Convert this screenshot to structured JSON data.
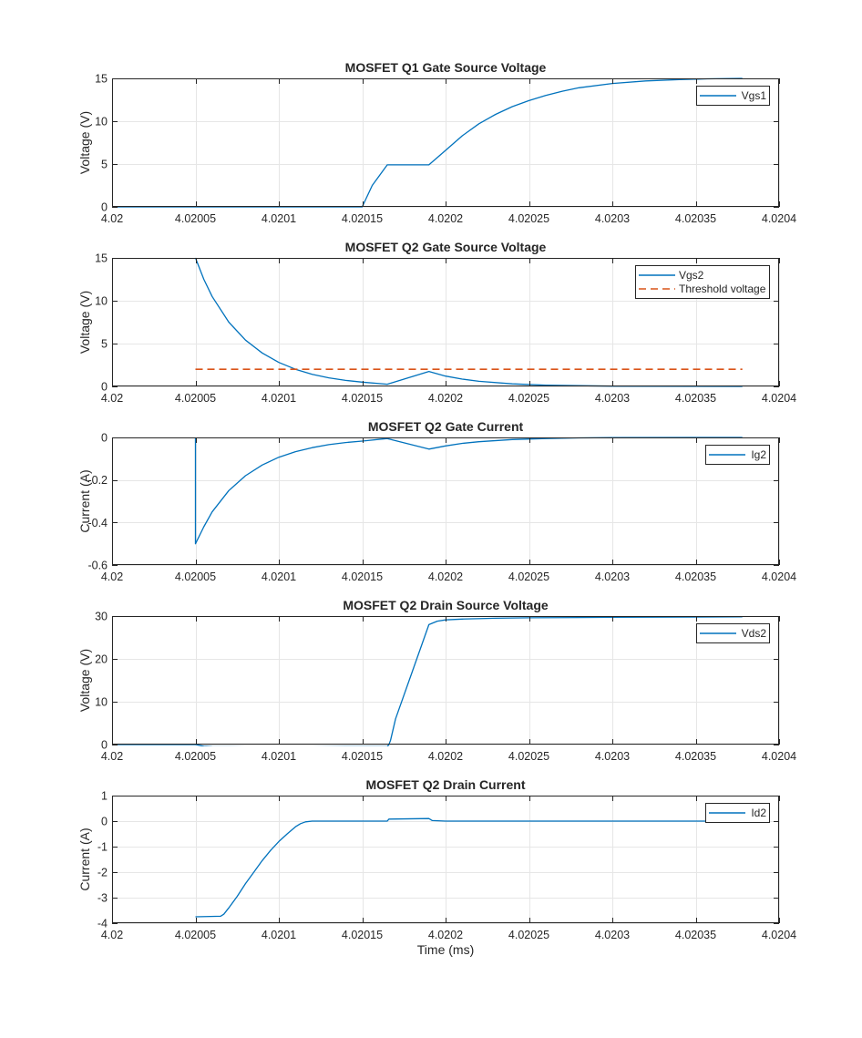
{
  "chart_data": [
    {
      "type": "line",
      "title": "MOSFET Q1 Gate Source Voltage",
      "xlabel": "",
      "ylabel": "Voltage (V)",
      "xlim": [
        4.02,
        4.0204
      ],
      "ylim": [
        0,
        15
      ],
      "xticks": [
        4.02,
        4.02005,
        4.0201,
        4.02015,
        4.0202,
        4.02025,
        4.0203,
        4.02035,
        4.0204
      ],
      "xtick_labels": [
        "4.02",
        "4.02005",
        "4.0201",
        "4.02015",
        "4.0202",
        "4.02025",
        "4.0203",
        "4.02035",
        "4.0204"
      ],
      "yticks": [
        0,
        5,
        10,
        15
      ],
      "ytick_labels": [
        "0",
        "5",
        "10",
        "15"
      ],
      "grid": true,
      "legend_position": "top-right",
      "series": [
        {
          "name": "Vgs1",
          "color": "#0072BD",
          "style": "solid",
          "x": [
            4.02,
            4.0201,
            4.02015,
            4.020156,
            4.020165,
            4.02019,
            4.0202,
            4.02021,
            4.02022,
            4.02023,
            4.02024,
            4.02025,
            4.02026,
            4.02027,
            4.02028,
            4.0203,
            4.02032,
            4.02034,
            4.020357,
            4.020378
          ],
          "y": [
            0,
            0,
            0,
            2.5,
            4.9,
            4.9,
            6.6,
            8.3,
            9.7,
            10.8,
            11.7,
            12.4,
            13.0,
            13.5,
            13.9,
            14.4,
            14.7,
            14.85,
            14.95,
            15.0
          ]
        }
      ]
    },
    {
      "type": "line",
      "title": "MOSFET Q2 Gate Source Voltage",
      "xlabel": "",
      "ylabel": "Voltage (V)",
      "xlim": [
        4.02,
        4.0204
      ],
      "ylim": [
        0,
        15
      ],
      "xticks": [
        4.02,
        4.02005,
        4.0201,
        4.02015,
        4.0202,
        4.02025,
        4.0203,
        4.02035,
        4.0204
      ],
      "xtick_labels": [
        "4.02",
        "4.02005",
        "4.0201",
        "4.02015",
        "4.0202",
        "4.02025",
        "4.0203",
        "4.02035",
        "4.0204"
      ],
      "yticks": [
        0,
        5,
        10,
        15
      ],
      "ytick_labels": [
        "0",
        "5",
        "10",
        "15"
      ],
      "grid": true,
      "legend_position": "top-right",
      "series": [
        {
          "name": "Vgs2",
          "color": "#0072BD",
          "style": "solid",
          "x": [
            4.02005,
            4.020055,
            4.02006,
            4.02007,
            4.02008,
            4.02009,
            4.0201,
            4.02011,
            4.02012,
            4.02013,
            4.02014,
            4.02015,
            4.020165,
            4.02019,
            4.0202,
            4.02021,
            4.02022,
            4.02024,
            4.02026,
            4.02028,
            4.0203,
            4.020378
          ],
          "y": [
            15,
            12.5,
            10.5,
            7.5,
            5.4,
            3.9,
            2.8,
            2.0,
            1.4,
            1.0,
            0.7,
            0.5,
            0.25,
            1.75,
            1.2,
            0.85,
            0.6,
            0.3,
            0.15,
            0.08,
            0.03,
            0.0
          ]
        },
        {
          "name": "Threshold voltage",
          "color": "#D95319",
          "style": "dashed",
          "x": [
            4.02005,
            4.020378
          ],
          "y": [
            2,
            2
          ]
        }
      ]
    },
    {
      "type": "line",
      "title": "MOSFET Q2 Gate Current",
      "xlabel": "",
      "ylabel": "Current (A)",
      "xlim": [
        4.02,
        4.0204
      ],
      "ylim": [
        -0.6,
        0
      ],
      "xticks": [
        4.02,
        4.02005,
        4.0201,
        4.02015,
        4.0202,
        4.02025,
        4.0203,
        4.02035,
        4.0204
      ],
      "xtick_labels": [
        "4.02",
        "4.02005",
        "4.0201",
        "4.02015",
        "4.0202",
        "4.02025",
        "4.0203",
        "4.02035",
        "4.0204"
      ],
      "yticks": [
        -0.6,
        -0.4,
        -0.2,
        0
      ],
      "ytick_labels": [
        "-0.6",
        "-0.4",
        "-0.2",
        "0"
      ],
      "grid": true,
      "legend_position": "top-right",
      "series": [
        {
          "name": "Ig2",
          "color": "#0072BD",
          "style": "solid",
          "x": [
            4.02005,
            4.02005,
            4.020055,
            4.02006,
            4.02007,
            4.02008,
            4.02009,
            4.0201,
            4.02011,
            4.02012,
            4.02013,
            4.02014,
            4.02015,
            4.020165,
            4.02019,
            4.0202,
            4.02021,
            4.02022,
            4.02024,
            4.02026,
            4.02028,
            4.0203,
            4.020378
          ],
          "y": [
            0,
            -0.5,
            -0.42,
            -0.35,
            -0.25,
            -0.18,
            -0.13,
            -0.093,
            -0.067,
            -0.048,
            -0.034,
            -0.024,
            -0.017,
            -0.005,
            -0.055,
            -0.04,
            -0.028,
            -0.02,
            -0.01,
            -0.005,
            -0.002,
            -0.001,
            0
          ]
        }
      ]
    },
    {
      "type": "line",
      "title": "MOSFET Q2 Drain Source Voltage",
      "xlabel": "",
      "ylabel": "Voltage (V)",
      "xlim": [
        4.02,
        4.0204
      ],
      "ylim": [
        0,
        30
      ],
      "xticks": [
        4.02,
        4.02005,
        4.0201,
        4.02015,
        4.0202,
        4.02025,
        4.0203,
        4.02035,
        4.0204
      ],
      "xtick_labels": [
        "4.02",
        "4.02005",
        "4.0201",
        "4.02015",
        "4.0202",
        "4.02025",
        "4.0203",
        "4.02035",
        "4.0204"
      ],
      "yticks": [
        0,
        10,
        20,
        30
      ],
      "ytick_labels": [
        "0",
        "10",
        "20",
        "30"
      ],
      "grid": true,
      "legend_position": "top-right",
      "series": [
        {
          "name": "Vds2",
          "color": "#0072BD",
          "style": "solid",
          "x": [
            4.02,
            4.02005,
            4.020055,
            4.02006,
            4.02008,
            4.0201,
            4.02012,
            4.02014,
            4.020155,
            4.020165,
            4.020166,
            4.020167,
            4.02017,
            4.02018,
            4.02019,
            4.020195,
            4.0202,
            4.02021,
            4.02023,
            4.02025,
            4.0203,
            4.020378
          ],
          "y": [
            0.0,
            0.0,
            -0.4,
            -0.5,
            -0.55,
            -0.55,
            -0.55,
            -0.5,
            -0.5,
            -0.5,
            0.0,
            1.0,
            6.0,
            17.0,
            28.0,
            28.8,
            29.1,
            29.3,
            29.5,
            29.6,
            29.7,
            29.8
          ]
        }
      ]
    },
    {
      "type": "line",
      "title": "MOSFET Q2 Drain Current",
      "xlabel": "Time (ms)",
      "ylabel": "Current (A)",
      "xlim": [
        4.02,
        4.0204
      ],
      "ylim": [
        -4,
        1
      ],
      "xticks": [
        4.02,
        4.02005,
        4.0201,
        4.02015,
        4.0202,
        4.02025,
        4.0203,
        4.02035,
        4.0204
      ],
      "xtick_labels": [
        "4.02",
        "4.02005",
        "4.0201",
        "4.02015",
        "4.0202",
        "4.02025",
        "4.0203",
        "4.02035",
        "4.0204"
      ],
      "yticks": [
        -4,
        -3,
        -2,
        -1,
        0,
        1
      ],
      "ytick_labels": [
        "-4",
        "-3",
        "-2",
        "-1",
        "0",
        "1"
      ],
      "grid": true,
      "legend_position": "top-right",
      "series": [
        {
          "name": "Id2",
          "color": "#0072BD",
          "style": "solid",
          "x": [
            4.02005,
            4.020065,
            4.020067,
            4.02007,
            4.020075,
            4.02008,
            4.020085,
            4.02009,
            4.020095,
            4.0201,
            4.020105,
            4.02011,
            4.020113,
            4.020116,
            4.02012,
            4.02014,
            4.020165,
            4.020166,
            4.02019,
            4.020192,
            4.0202,
            4.02025,
            4.0203,
            4.020378
          ],
          "y": [
            -3.75,
            -3.73,
            -3.65,
            -3.4,
            -2.95,
            -2.45,
            -2.0,
            -1.55,
            -1.15,
            -0.8,
            -0.5,
            -0.22,
            -0.1,
            -0.03,
            0.0,
            0.0,
            0.0,
            0.08,
            0.1,
            0.02,
            0.0,
            0.0,
            0.0,
            0.0
          ]
        }
      ]
    }
  ]
}
